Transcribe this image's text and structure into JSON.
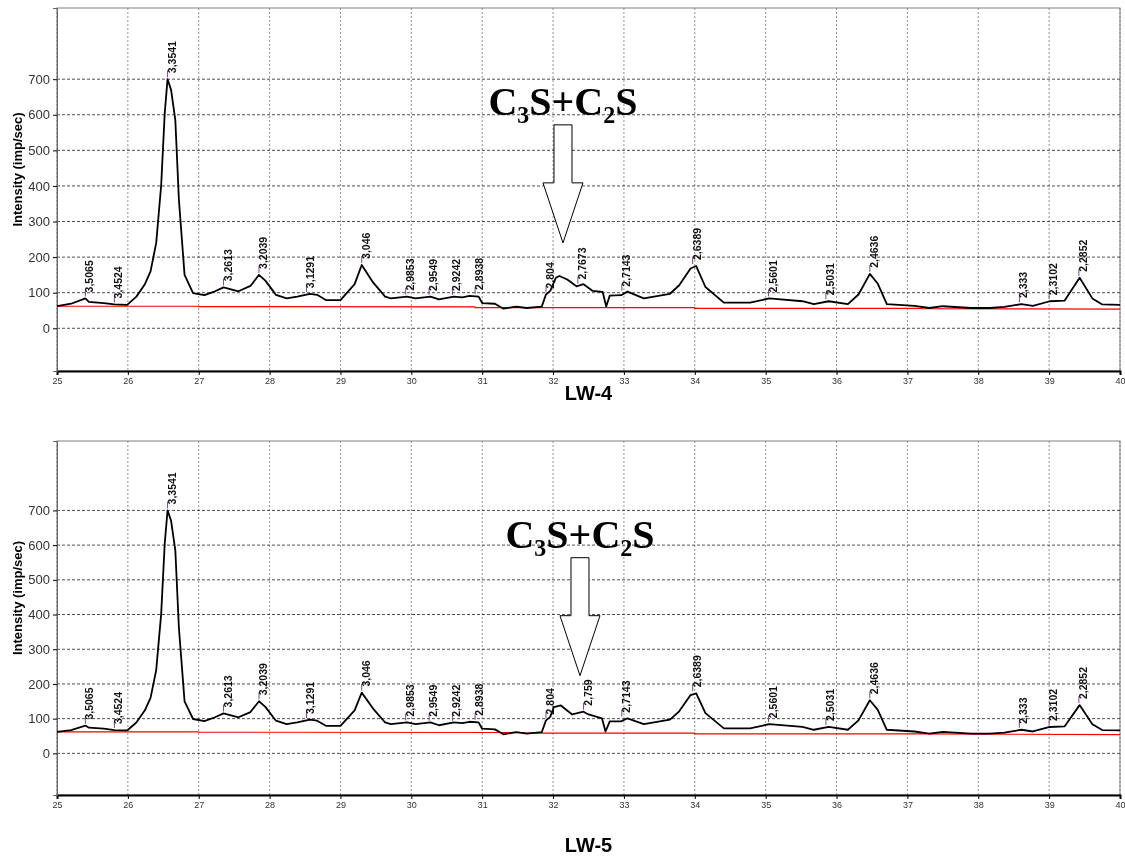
{
  "chart_data": [
    {
      "type": "line",
      "title": "LW-4",
      "ylabel": "Intensity (imp/sec)",
      "xlim": [
        25,
        40
      ],
      "ylim": [
        -120,
        900
      ],
      "xticks": [
        25,
        26,
        27,
        28,
        29,
        30,
        31,
        32,
        33,
        34,
        35,
        36,
        37,
        38,
        39,
        40
      ],
      "yticks": [
        0,
        100,
        200,
        300,
        400,
        500,
        600,
        700
      ],
      "grid": true,
      "marker": "none",
      "line_style": "solid",
      "series": [
        {
          "color": "#000000",
          "x": [
            25,
            25.2,
            25.4,
            25.45,
            25.66,
            25.81,
            25.99,
            26.12,
            26.24,
            26.32,
            26.4,
            26.47,
            26.52,
            26.56,
            26.61,
            26.67,
            26.72,
            26.8,
            26.92,
            27.08,
            27.23,
            27.35,
            27.56,
            27.73,
            27.85,
            27.94,
            28.09,
            28.24,
            28.39,
            28.57,
            28.67,
            28.8,
            29.0,
            29.2,
            29.3,
            29.46,
            29.63,
            29.71,
            29.94,
            30.06,
            30.27,
            30.39,
            30.6,
            30.72,
            30.82,
            30.95,
            31.0,
            31.18,
            31.3,
            31.48,
            31.63,
            31.84,
            31.9,
            31.96,
            32.04,
            32.09,
            32.2,
            32.33,
            32.43,
            32.56,
            32.7,
            32.75,
            32.8,
            32.96,
            33.05,
            33.28,
            33.65,
            33.78,
            33.94,
            34.02,
            34.15,
            34.41,
            34.78,
            35.05,
            35.52,
            35.68,
            35.89,
            36.16,
            36.31,
            36.47,
            36.58,
            36.71,
            37.1,
            37.31,
            37.5,
            37.9,
            38.16,
            38.37,
            38.61,
            38.77,
            39.01,
            39.22,
            39.43,
            39.61,
            39.75,
            40
          ],
          "values": [
            62,
            69,
            84,
            74,
            71,
            67,
            66,
            89,
            124,
            160,
            240,
            402,
            604,
            700,
            670,
            584,
            362,
            150,
            99,
            93,
            104,
            115,
            104,
            119,
            150,
            134,
            94,
            84,
            89,
            97,
            94,
            79,
            79,
            124,
            178,
            129,
            89,
            84,
            89,
            84,
            89,
            81,
            89,
            87,
            91,
            89,
            71,
            69,
            55,
            61,
            57,
            61,
            95,
            105,
            142,
            147,
            137,
            118,
            124,
            105,
            102,
            61,
            92,
            93,
            103,
            84,
            97,
            121,
            168,
            175,
            116,
            72,
            72,
            84,
            76,
            68,
            76,
            68,
            95,
            153,
            126,
            68,
            63,
            57,
            62,
            57,
            57,
            60,
            68,
            63,
            76,
            78,
            142,
            84,
            67,
            66
          ]
        },
        {
          "color": "#ff0000",
          "x": [
            25,
            27,
            27,
            30.9,
            30.9,
            34,
            34,
            37.2,
            37.2,
            40
          ],
          "values": [
            62,
            62,
            61,
            60,
            58,
            58,
            56,
            56,
            55,
            54
          ]
        }
      ],
      "annotations": [
        "C₃S+C₂S",
        {
          "text": "3,5065",
          "x": 25.4,
          "y": 84
        },
        {
          "text": "3,4524",
          "x": 25.81,
          "y": 67
        },
        {
          "text": "3,3541",
          "x": 26.56,
          "y": 700
        },
        {
          "text": "3,2613",
          "x": 27.35,
          "y": 115
        },
        {
          "text": "3,2039",
          "x": 27.85,
          "y": 150
        },
        {
          "text": "3,1291",
          "x": 28.52,
          "y": 96
        },
        {
          "text": "3,046",
          "x": 29.3,
          "y": 178
        },
        {
          "text": "2,9853",
          "x": 29.92,
          "y": 89
        },
        {
          "text": "2,9549",
          "x": 30.25,
          "y": 88
        },
        {
          "text": "2,9242",
          "x": 30.58,
          "y": 88
        },
        {
          "text": "2,8938",
          "x": 30.9,
          "y": 91
        },
        {
          "text": "2,804",
          "x": 31.9,
          "y": 95
        },
        {
          "text": "2,7673",
          "x": 32.35,
          "y": 120
        },
        {
          "text": "2,7143",
          "x": 32.97,
          "y": 100
        },
        {
          "text": "2,6389",
          "x": 33.97,
          "y": 175
        },
        {
          "text": "2,5601",
          "x": 35.04,
          "y": 84
        },
        {
          "text": "2,5031",
          "x": 35.85,
          "y": 76
        },
        {
          "text": "2,4636",
          "x": 36.47,
          "y": 153
        },
        {
          "text": "2,333",
          "x": 38.58,
          "y": 68
        },
        {
          "text": "2,3102",
          "x": 39.0,
          "y": 76
        },
        {
          "text": "2,2852",
          "x": 39.42,
          "y": 142
        }
      ]
    },
    {
      "type": "line",
      "title": "LW-5",
      "ylabel": "Intensity (imp/sec)",
      "xlim": [
        25,
        40
      ],
      "ylim": [
        -120,
        900
      ],
      "xticks": [
        25,
        26,
        27,
        28,
        29,
        30,
        31,
        32,
        33,
        34,
        35,
        36,
        37,
        38,
        39,
        40
      ],
      "yticks": [
        0,
        100,
        200,
        300,
        400,
        500,
        600,
        700
      ],
      "grid": true,
      "marker": "none",
      "line_style": "solid",
      "series": [
        {
          "color": "#000000",
          "x": [
            25,
            25.2,
            25.4,
            25.45,
            25.66,
            25.81,
            25.99,
            26.12,
            26.24,
            26.32,
            26.4,
            26.47,
            26.52,
            26.56,
            26.61,
            26.67,
            26.72,
            26.8,
            26.92,
            27.08,
            27.23,
            27.35,
            27.56,
            27.73,
            27.85,
            27.94,
            28.09,
            28.24,
            28.39,
            28.57,
            28.67,
            28.8,
            29.0,
            29.2,
            29.3,
            29.46,
            29.63,
            29.71,
            29.94,
            30.06,
            30.27,
            30.39,
            30.6,
            30.72,
            30.82,
            30.95,
            31.0,
            31.18,
            31.3,
            31.48,
            31.63,
            31.84,
            31.9,
            31.96,
            32.01,
            32.11,
            32.27,
            32.43,
            32.5,
            32.69,
            32.74,
            32.8,
            32.96,
            33.05,
            33.28,
            33.65,
            33.78,
            33.94,
            34.02,
            34.15,
            34.41,
            34.78,
            35.05,
            35.52,
            35.68,
            35.89,
            36.16,
            36.31,
            36.47,
            36.58,
            36.71,
            37.1,
            37.31,
            37.5,
            37.9,
            38.16,
            38.37,
            38.61,
            38.77,
            39.01,
            39.22,
            39.43,
            39.61,
            39.75,
            40
          ],
          "values": [
            62,
            67,
            80,
            74,
            71,
            67,
            66,
            89,
            124,
            160,
            240,
            402,
            604,
            700,
            670,
            584,
            362,
            150,
            99,
            93,
            104,
            115,
            104,
            119,
            150,
            134,
            94,
            84,
            89,
            97,
            94,
            79,
            79,
            124,
            175,
            129,
            89,
            84,
            89,
            84,
            89,
            81,
            89,
            87,
            91,
            89,
            71,
            69,
            55,
            61,
            57,
            61,
            95,
            105,
            133,
            138,
            112,
            120,
            112,
            101,
            63,
            92,
            92,
            101,
            84,
            97,
            121,
            168,
            173,
            116,
            72,
            72,
            84,
            76,
            68,
            76,
            68,
            95,
            153,
            126,
            68,
            63,
            57,
            62,
            57,
            57,
            60,
            68,
            63,
            76,
            78,
            139,
            84,
            67,
            66
          ]
        },
        {
          "color": "#ff0000",
          "x": [
            25,
            27,
            27,
            31.6,
            31.6,
            34,
            34,
            37.2,
            40
          ],
          "values": [
            62,
            62,
            61,
            60,
            58,
            58,
            56,
            56,
            54
          ]
        }
      ],
      "annotations": [
        "C₃S+C₂S",
        {
          "text": "3,5065",
          "x": 25.4,
          "y": 80
        },
        {
          "text": "3,4524",
          "x": 25.81,
          "y": 67
        },
        {
          "text": "3,3541",
          "x": 26.56,
          "y": 700
        },
        {
          "text": "3,2613",
          "x": 27.35,
          "y": 115
        },
        {
          "text": "3,2039",
          "x": 27.85,
          "y": 150
        },
        {
          "text": "3,1291",
          "x": 28.52,
          "y": 96
        },
        {
          "text": "3,046",
          "x": 29.3,
          "y": 175
        },
        {
          "text": "2,9853",
          "x": 29.92,
          "y": 89
        },
        {
          "text": "2,9549",
          "x": 30.25,
          "y": 88
        },
        {
          "text": "2,9242",
          "x": 30.58,
          "y": 88
        },
        {
          "text": "2,8938",
          "x": 30.9,
          "y": 91
        },
        {
          "text": "2,804",
          "x": 31.9,
          "y": 95
        },
        {
          "text": "2,759",
          "x": 32.43,
          "y": 120
        },
        {
          "text": "2,7143",
          "x": 32.97,
          "y": 100
        },
        {
          "text": "2,6389",
          "x": 33.97,
          "y": 173
        },
        {
          "text": "2,5601",
          "x": 35.04,
          "y": 84
        },
        {
          "text": "2,5031",
          "x": 35.85,
          "y": 76
        },
        {
          "text": "2,4636",
          "x": 36.47,
          "y": 153
        },
        {
          "text": "2,333",
          "x": 38.58,
          "y": 68
        },
        {
          "text": "2,3102",
          "x": 39.0,
          "y": 76
        },
        {
          "text": "2,2852",
          "x": 39.42,
          "y": 139
        }
      ]
    }
  ]
}
